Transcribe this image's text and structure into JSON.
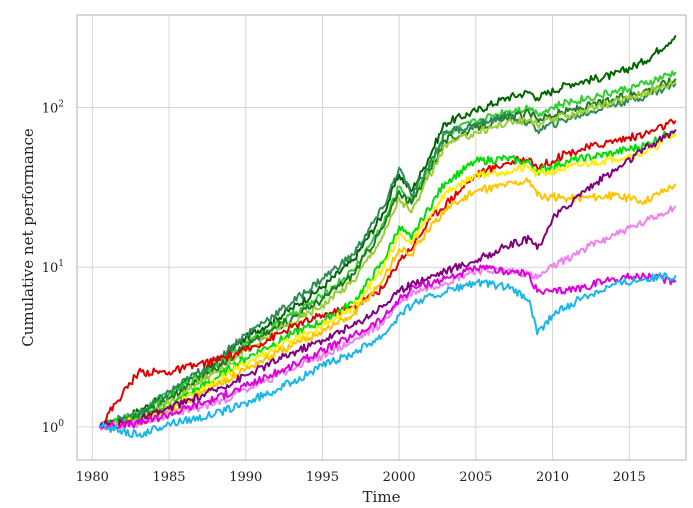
{
  "chart_data": {
    "type": "line",
    "title": "",
    "xlabel": "Time",
    "ylabel": "Cumulative net performance",
    "y_scale": "log",
    "xlim": [
      1979.0,
      2018.7
    ],
    "ylim": [
      0.62,
      380
    ],
    "x_ticks": [
      1980,
      1985,
      1990,
      1995,
      2000,
      2005,
      2010,
      2015
    ],
    "x_tick_labels": [
      "1980",
      "1985",
      "1990",
      "1995",
      "2000",
      "2005",
      "2010",
      "2015"
    ],
    "y_ticks": [
      1,
      10,
      100
    ],
    "y_tick_labels": [
      {
        "base": "10",
        "exp": "0"
      },
      {
        "base": "10",
        "exp": "1"
      },
      {
        "base": "10",
        "exp": "2"
      }
    ],
    "grid": true,
    "legend": "none",
    "series": [
      {
        "color": "#006400",
        "x": [
          1980.5,
          1983,
          1985,
          1988,
          1990,
          1993,
          1995,
          1997,
          1999,
          2000,
          2000.8,
          2001.5,
          2003,
          2005,
          2007,
          2008.5,
          2009,
          2011,
          2014,
          2016,
          2018
        ],
        "values": [
          1.0,
          1.25,
          1.6,
          2.5,
          3.6,
          5.5,
          7.5,
          11,
          22,
          38,
          30,
          40,
          80,
          95,
          115,
          125,
          115,
          140,
          160,
          195,
          280
        ]
      },
      {
        "color": "#32cd32",
        "x": [
          1980.5,
          1983,
          1985,
          1988,
          1990,
          1993,
          1995,
          1997,
          1999,
          2000,
          2000.8,
          2001.5,
          2003,
          2005,
          2007,
          2008.5,
          2009,
          2011,
          2014,
          2016,
          2018
        ],
        "values": [
          1.0,
          1.2,
          1.6,
          2.4,
          3.3,
          5.0,
          6.6,
          9.5,
          19,
          32,
          26,
          35,
          68,
          82,
          95,
          100,
          92,
          108,
          125,
          140,
          165
        ]
      },
      {
        "color": "#1e7b1e",
        "x": [
          1980.5,
          1983,
          1985,
          1988,
          1990,
          1993,
          1995,
          1997,
          1999,
          2000,
          2000.8,
          2001.5,
          2003,
          2005,
          2007,
          2008.5,
          2009,
          2011,
          2014,
          2016,
          2018
        ],
        "values": [
          1.0,
          1.15,
          1.5,
          2.3,
          3.2,
          4.8,
          6.3,
          9.0,
          18,
          30,
          25,
          33,
          62,
          75,
          86,
          92,
          85,
          95,
          112,
          128,
          150
        ]
      },
      {
        "color": "#2e8b57",
        "x": [
          1980.5,
          1983,
          1985,
          1988,
          1990,
          1993,
          1995,
          1997,
          1999,
          2000,
          2000.8,
          2001.5,
          2003,
          2005,
          2007,
          2008.5,
          2009,
          2011,
          2014,
          2016,
          2018
        ],
        "values": [
          1.0,
          1.2,
          1.65,
          2.6,
          3.8,
          6.0,
          8.5,
          12,
          24,
          42,
          28,
          36,
          70,
          78,
          88,
          80,
          72,
          85,
          105,
          118,
          140
        ]
      },
      {
        "color": "#9acd32",
        "x": [
          1980.5,
          1983,
          1985,
          1988,
          1990,
          1993,
          1995,
          1997,
          1999,
          2000,
          2000.8,
          2001.5,
          2003,
          2005,
          2007,
          2008.5,
          2009,
          2011,
          2014,
          2016,
          2018
        ],
        "values": [
          1.0,
          1.1,
          1.4,
          2.2,
          3.0,
          4.5,
          5.8,
          8.2,
          16,
          27,
          22,
          30,
          58,
          70,
          80,
          84,
          78,
          90,
          108,
          124,
          145
        ]
      },
      {
        "color": "#e00000",
        "x": [
          1980.5,
          1981.5,
          1983,
          1985,
          1988,
          1990,
          1993,
          1995,
          1997,
          1999,
          2000,
          2001,
          2002,
          2005,
          2007,
          2008.5,
          2009,
          2011,
          2014,
          2016,
          2018
        ],
        "values": [
          1.0,
          1.4,
          2.2,
          2.2,
          2.6,
          3.0,
          4.2,
          5.0,
          5.6,
          7.5,
          11,
          14,
          20,
          38,
          45,
          48,
          42,
          52,
          62,
          68,
          82
        ]
      },
      {
        "color": "#00dd00",
        "x": [
          1980.5,
          1983,
          1985,
          1988,
          1990,
          1993,
          1995,
          1997,
          1999,
          2000,
          2000.8,
          2001.5,
          2003,
          2005,
          2007,
          2008.5,
          2009,
          2011,
          2014,
          2016,
          2018
        ],
        "values": [
          1.0,
          1.1,
          1.35,
          2.0,
          2.7,
          3.8,
          4.6,
          6.0,
          11,
          18,
          15,
          20,
          34,
          46,
          48,
          45,
          40,
          46,
          52,
          58,
          72
        ]
      },
      {
        "color": "#ffee00",
        "x": [
          1980.5,
          1983,
          1985,
          1988,
          1990,
          1993,
          1995,
          1997,
          1999,
          2000,
          2000.8,
          2001.5,
          2003,
          2005,
          2007,
          2008.5,
          2009,
          2011,
          2014,
          2016,
          2018
        ],
        "values": [
          1.0,
          1.1,
          1.3,
          1.9,
          2.5,
          3.5,
          4.3,
          5.6,
          10,
          16,
          14,
          18,
          29,
          38,
          40,
          42,
          38,
          42,
          48,
          52,
          68
        ]
      },
      {
        "color": "#ffc400",
        "x": [
          1980.5,
          1983,
          1985,
          1988,
          1990,
          1993,
          1995,
          1997,
          1999,
          2000,
          2000.8,
          2001.5,
          2003,
          2005,
          2007,
          2008.5,
          2009,
          2011,
          2014,
          2016,
          2018
        ],
        "values": [
          1.0,
          1.05,
          1.25,
          1.8,
          2.3,
          3.2,
          4.0,
          5.0,
          8.5,
          13,
          12,
          15,
          23,
          30,
          33,
          35,
          28,
          27,
          28,
          26,
          33
        ]
      },
      {
        "color": "#800080",
        "x": [
          1980.5,
          1983,
          1985,
          1988,
          1990,
          1993,
          1995,
          1997,
          1999,
          2000,
          2001,
          2003,
          2005,
          2007,
          2008.5,
          2009,
          2010,
          2012,
          2014,
          2016,
          2018
        ],
        "values": [
          1.0,
          1.1,
          1.3,
          1.7,
          2.1,
          2.9,
          3.5,
          4.3,
          5.8,
          7.0,
          8.0,
          9.5,
          11,
          13.5,
          15,
          13,
          20,
          30,
          40,
          55,
          72
        ]
      },
      {
        "color": "#ee82ee",
        "x": [
          1980.5,
          1983,
          1985,
          1988,
          1990,
          1993,
          1995,
          1997,
          1999,
          2000,
          2001,
          2003,
          2005,
          2007,
          2008.5,
          2009,
          2010,
          2012,
          2014,
          2016,
          2018
        ],
        "values": [
          1.0,
          1.05,
          1.2,
          1.4,
          1.7,
          2.3,
          2.8,
          3.4,
          4.5,
          6.0,
          7.0,
          8.0,
          9.5,
          9.5,
          9.0,
          8.5,
          10,
          13,
          16,
          19,
          24
        ]
      },
      {
        "color": "#dd00dd",
        "x": [
          1980.5,
          1983,
          1985,
          1988,
          1990,
          1993,
          1995,
          1997,
          1999,
          2000,
          2001,
          2003,
          2005,
          2007,
          2008.5,
          2009,
          2010,
          2012,
          2014,
          2016,
          2018
        ],
        "values": [
          1.0,
          1.05,
          1.2,
          1.5,
          1.8,
          2.4,
          3.0,
          3.7,
          4.8,
          6.3,
          7.5,
          8.5,
          9.8,
          9.5,
          9.0,
          7.0,
          7.0,
          7.5,
          8.5,
          8.8,
          8.2
        ]
      },
      {
        "color": "#1cb5e8",
        "x": [
          1980.5,
          1982,
          1983,
          1985,
          1988,
          1990,
          1993,
          1995,
          1997,
          1999,
          2000,
          2001,
          2003,
          2005,
          2007,
          2008.5,
          2009,
          2010,
          2012,
          2014,
          2016,
          2018
        ],
        "values": [
          1.0,
          0.95,
          0.88,
          1.05,
          1.2,
          1.4,
          1.9,
          2.4,
          2.9,
          3.8,
          5.0,
          6.0,
          7.0,
          8.0,
          7.5,
          6.2,
          3.8,
          5.0,
          6.5,
          7.8,
          8.5,
          8.8
        ]
      }
    ]
  }
}
